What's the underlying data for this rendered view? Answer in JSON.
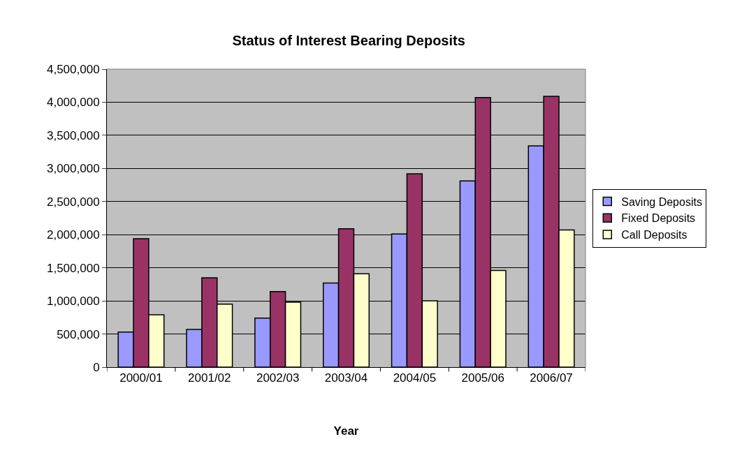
{
  "chart_data": {
    "type": "bar",
    "title": "Status of Interest Bearing Deposits",
    "xlabel": "Year",
    "categories": [
      "2000/01",
      "2001/02",
      "2002/03",
      "2003/04",
      "2004/05",
      "2005/06",
      "2006/07"
    ],
    "series": [
      {
        "name": "Saving Deposits",
        "color": "#9999ff",
        "values": [
          530000,
          570000,
          740000,
          1270000,
          2010000,
          2810000,
          3340000
        ]
      },
      {
        "name": "Fixed Deposits",
        "color": "#993366",
        "values": [
          1940000,
          1350000,
          1140000,
          2090000,
          2920000,
          4070000,
          4090000
        ]
      },
      {
        "name": "Call Deposits",
        "color": "#ffffcc",
        "values": [
          790000,
          950000,
          980000,
          1410000,
          1000000,
          1460000,
          2070000
        ]
      }
    ],
    "ylim": [
      0,
      4500000
    ],
    "yticks": [
      {
        "value": 0,
        "label": "0"
      },
      {
        "value": 500000,
        "label": "500,000"
      },
      {
        "value": 1000000,
        "label": "1,000,000"
      },
      {
        "value": 1500000,
        "label": "1,500,000"
      },
      {
        "value": 2000000,
        "label": "2,000,000"
      },
      {
        "value": 2500000,
        "label": "2,500,000"
      },
      {
        "value": 3000000,
        "label": "3,000,000"
      },
      {
        "value": 3500000,
        "label": "3,500,000"
      },
      {
        "value": 4000000,
        "label": "4,000,000"
      },
      {
        "value": 4500000,
        "label": "4,500,000"
      }
    ],
    "grid": "y",
    "legend": "right"
  }
}
